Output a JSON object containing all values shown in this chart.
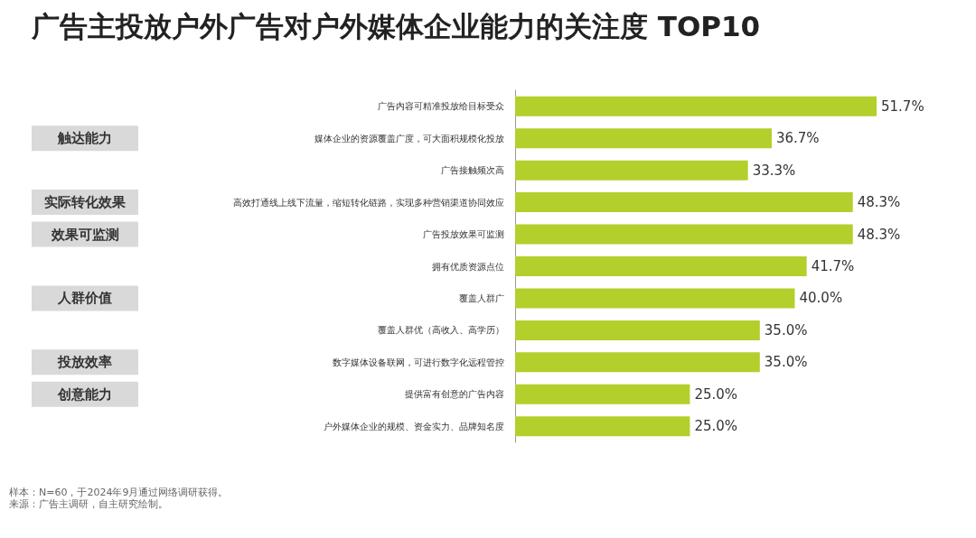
{
  "chart_data": {
    "type": "bar",
    "orientation": "horizontal",
    "title": "广告主投放户外广告对户外媒体企业能力的关注度 TOP10",
    "categories": [
      "广告内容可精准投放给目标受众",
      "媒体企业的资源覆盖广度，可大面积规模化投放",
      "广告接触频次高",
      "高效打通线上线下流量，缩短转化链路，实现多种营销渠道协同效应",
      "广告投放效果可监测",
      "拥有优质资源点位",
      "覆盖人群广",
      "覆盖人群优（高收入、高学历）",
      "数字媒体设备联网，可进行数字化远程管控",
      "提供富有创意的广告内容",
      "户外媒体企业的规模、资金实力、品牌知名度"
    ],
    "values": [
      51.7,
      36.7,
      33.3,
      48.3,
      48.3,
      41.7,
      40.0,
      35.0,
      35.0,
      25.0,
      25.0
    ],
    "value_labels": [
      "51.7%",
      "36.7%",
      "33.3%",
      "48.3%",
      "48.3%",
      "41.7%",
      "40.0%",
      "35.0%",
      "35.0%",
      "25.0%",
      "25.0%"
    ],
    "color": "#b3cf2c",
    "annotations": [
      "触达能力",
      "实际转化效果",
      "效果可监测",
      "人群价值",
      "投放效率",
      "创意能力",
      "样本：N=60，于2024年9月通过网络调研获得。",
      "来源：广告主调研，自主研究绘制。"
    ]
  }
}
